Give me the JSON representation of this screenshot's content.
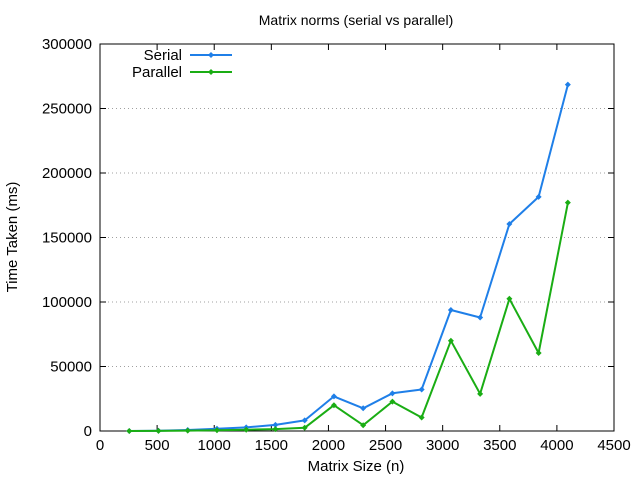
{
  "chart_data": {
    "type": "line",
    "title": "Matrix norms (serial vs parallel)",
    "xlabel": "Matrix Size (n)",
    "ylabel": "Time Taken (ms)",
    "xlim": [
      0,
      4500
    ],
    "ylim": [
      0,
      300000
    ],
    "xticks": [
      "0",
      "500",
      "1000",
      "1500",
      "2000",
      "2500",
      "3000",
      "3500",
      "4000",
      "4500"
    ],
    "yticks": [
      "0",
      "50000",
      "100000",
      "150000",
      "200000",
      "250000",
      "300000"
    ],
    "grid": "horizontal dotted",
    "legend_position": "top-left",
    "x": [
      256,
      512,
      768,
      1024,
      1280,
      1536,
      1792,
      2048,
      2304,
      2560,
      2816,
      3072,
      3328,
      3584,
      3840,
      4096
    ],
    "series": [
      {
        "name": "Serial",
        "color": "#1f7fe8",
        "values": [
          0,
          200,
          800,
          1700,
          2800,
          4700,
          8200,
          26800,
          17600,
          29200,
          32200,
          93800,
          88000,
          160500,
          181500,
          268500
        ]
      },
      {
        "name": "Parallel",
        "color": "#1aad14",
        "values": [
          0,
          100,
          300,
          600,
          1000,
          1500,
          2500,
          20000,
          4500,
          22800,
          10500,
          70000,
          28800,
          102500,
          60500,
          177000
        ]
      }
    ]
  }
}
